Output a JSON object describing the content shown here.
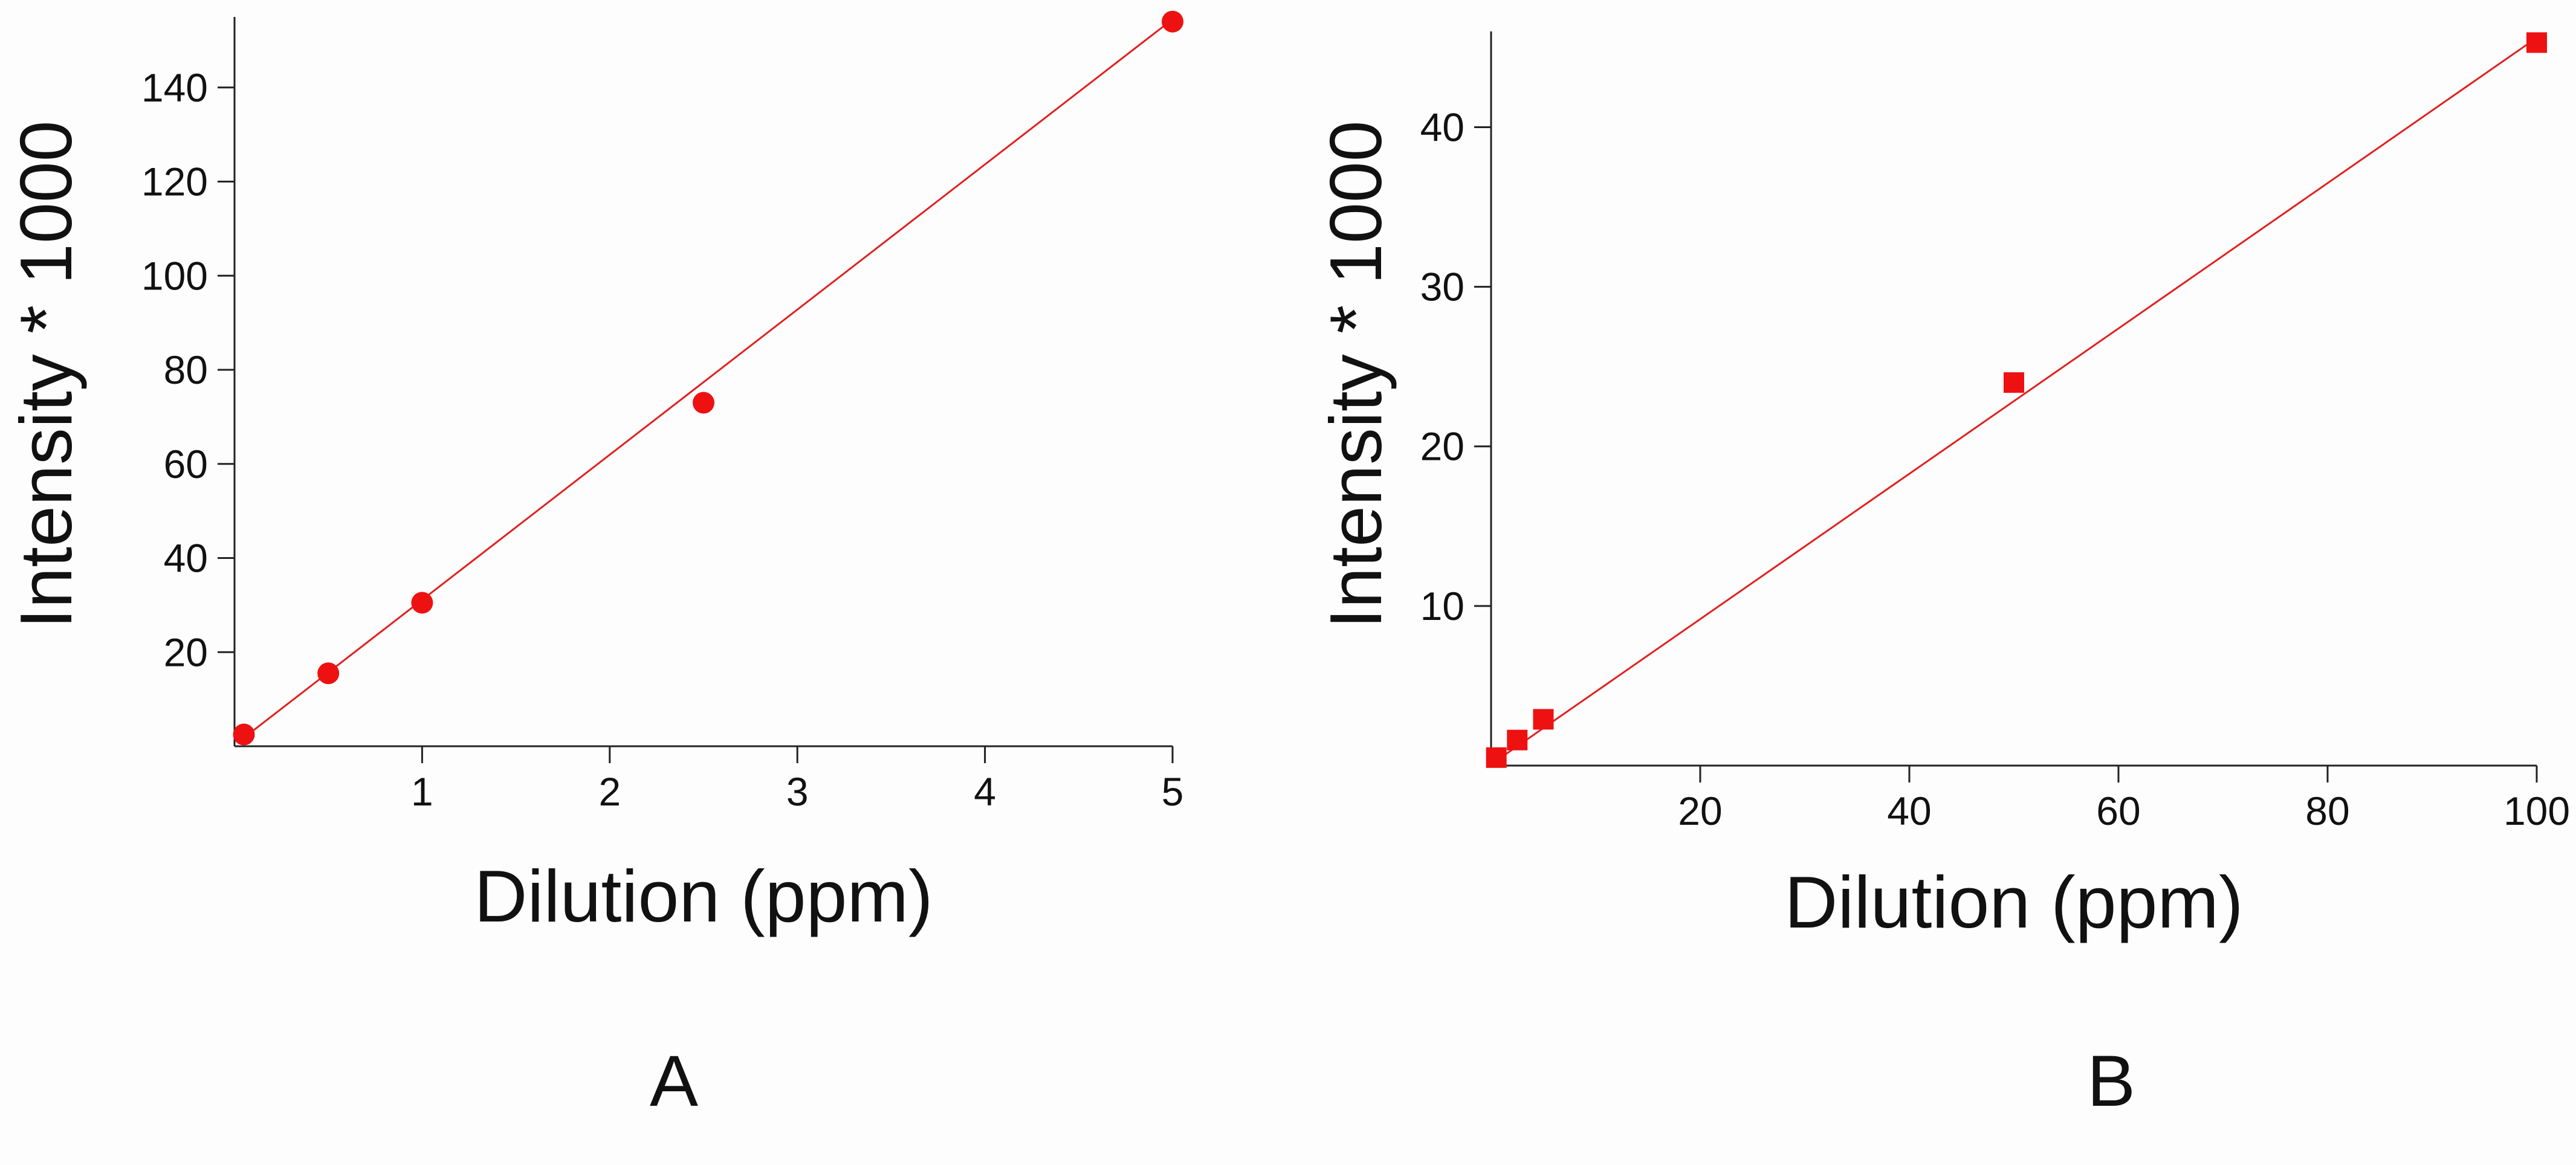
{
  "colors": {
    "data": "#ee1111",
    "fit": "#e02020",
    "axis": "#222222",
    "background": "#fdfdfd"
  },
  "chart_data": [
    {
      "type": "scatter",
      "panel_label": "A",
      "marker": "circle",
      "xlabel": "Dilution (ppm)",
      "ylabel": "Intensity * 1000",
      "xlim": [
        0,
        5
      ],
      "ylim": [
        0,
        155
      ],
      "xticks": [
        "1",
        "2",
        "3",
        "4",
        "5"
      ],
      "yticks": [
        "20",
        "40",
        "60",
        "80",
        "100",
        "120",
        "140"
      ],
      "grid": false,
      "points": [
        {
          "x": 0.05,
          "y": 2.5
        },
        {
          "x": 0.5,
          "y": 15.5
        },
        {
          "x": 1,
          "y": 30.5
        },
        {
          "x": 2.5,
          "y": 73
        },
        {
          "x": 5,
          "y": 154
        }
      ],
      "fit_line": {
        "x": [
          0.05,
          5
        ],
        "y": [
          1.8,
          154.5
        ]
      }
    },
    {
      "type": "scatter",
      "panel_label": "B",
      "marker": "square",
      "xlabel": "Dilution (ppm)",
      "ylabel": "Intensity * 1000",
      "xlim": [
        0,
        100
      ],
      "ylim": [
        0,
        46
      ],
      "xticks": [
        "20",
        "40",
        "60",
        "80",
        "100"
      ],
      "yticks": [
        "10",
        "20",
        "30",
        "40"
      ],
      "grid": false,
      "points": [
        {
          "x": 0.5,
          "y": 0.5
        },
        {
          "x": 2.5,
          "y": 1.6
        },
        {
          "x": 5,
          "y": 2.9
        },
        {
          "x": 50,
          "y": 24
        },
        {
          "x": 100,
          "y": 45.3
        }
      ],
      "fit_line": {
        "x": [
          0.5,
          100
        ],
        "y": [
          0.3,
          45.6
        ]
      }
    }
  ]
}
